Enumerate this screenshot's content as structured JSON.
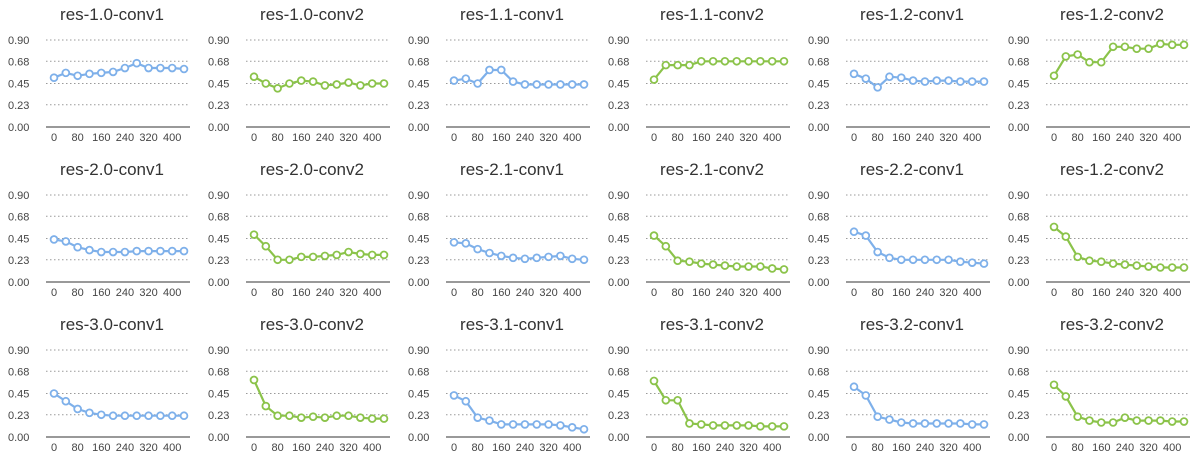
{
  "colors": {
    "blue": "#7eb0ea",
    "green": "#8bc34a"
  },
  "chart_data": [
    {
      "type": "line",
      "title": "res-1.0-conv1",
      "color": "blue",
      "y_ticks": [
        "0.00",
        "0.23",
        "0.45",
        "0.68",
        "0.90"
      ],
      "ylim": [
        0,
        0.9
      ],
      "x_ticks": [
        "0",
        "80",
        "160",
        "240",
        "320",
        "400"
      ],
      "xlim": [
        0,
        440
      ],
      "grid": true,
      "x": [
        0,
        40,
        80,
        120,
        160,
        200,
        240,
        280,
        320,
        360,
        400,
        440
      ],
      "values": [
        0.51,
        0.56,
        0.53,
        0.55,
        0.56,
        0.57,
        0.61,
        0.66,
        0.61,
        0.61,
        0.61,
        0.6
      ]
    },
    {
      "type": "line",
      "title": "res-1.0-conv2",
      "color": "green",
      "y_ticks": [
        "0.00",
        "0.23",
        "0.45",
        "0.68",
        "0.90"
      ],
      "ylim": [
        0,
        0.9
      ],
      "x_ticks": [
        "0",
        "80",
        "160",
        "240",
        "320",
        "400"
      ],
      "xlim": [
        0,
        440
      ],
      "grid": true,
      "x": [
        0,
        40,
        80,
        120,
        160,
        200,
        240,
        280,
        320,
        360,
        400,
        440
      ],
      "values": [
        0.52,
        0.45,
        0.4,
        0.45,
        0.48,
        0.47,
        0.43,
        0.44,
        0.46,
        0.43,
        0.45,
        0.45
      ]
    },
    {
      "type": "line",
      "title": "res-1.1-conv1",
      "color": "blue",
      "y_ticks": [
        "0.00",
        "0.23",
        "0.45",
        "0.68",
        "0.90"
      ],
      "ylim": [
        0,
        0.9
      ],
      "x_ticks": [
        "0",
        "80",
        "160",
        "240",
        "320",
        "400"
      ],
      "xlim": [
        0,
        440
      ],
      "grid": true,
      "x": [
        0,
        40,
        80,
        120,
        160,
        200,
        240,
        280,
        320,
        360,
        400,
        440
      ],
      "values": [
        0.48,
        0.5,
        0.45,
        0.59,
        0.59,
        0.47,
        0.44,
        0.44,
        0.44,
        0.44,
        0.44,
        0.44
      ]
    },
    {
      "type": "line",
      "title": "res-1.1-conv2",
      "color": "green",
      "y_ticks": [
        "0.00",
        "0.23",
        "0.45",
        "0.68",
        "0.90"
      ],
      "ylim": [
        0,
        0.9
      ],
      "x_ticks": [
        "0",
        "80",
        "160",
        "240",
        "320",
        "400"
      ],
      "xlim": [
        0,
        440
      ],
      "grid": true,
      "x": [
        0,
        40,
        80,
        120,
        160,
        200,
        240,
        280,
        320,
        360,
        400,
        440
      ],
      "values": [
        0.49,
        0.64,
        0.64,
        0.64,
        0.68,
        0.68,
        0.68,
        0.68,
        0.68,
        0.68,
        0.68,
        0.68
      ]
    },
    {
      "type": "line",
      "title": "res-1.2-conv1",
      "color": "blue",
      "y_ticks": [
        "0.00",
        "0.23",
        "0.45",
        "0.68",
        "0.90"
      ],
      "ylim": [
        0,
        0.9
      ],
      "x_ticks": [
        "0",
        "80",
        "160",
        "240",
        "320",
        "400"
      ],
      "xlim": [
        0,
        440
      ],
      "grid": true,
      "x": [
        0,
        40,
        80,
        120,
        160,
        200,
        240,
        280,
        320,
        360,
        400,
        440
      ],
      "values": [
        0.55,
        0.5,
        0.41,
        0.52,
        0.51,
        0.48,
        0.47,
        0.48,
        0.48,
        0.47,
        0.47,
        0.47
      ]
    },
    {
      "type": "line",
      "title": "res-1.2-conv2",
      "color": "green",
      "y_ticks": [
        "0.00",
        "0.23",
        "0.45",
        "0.68",
        "0.90"
      ],
      "ylim": [
        0,
        0.9
      ],
      "x_ticks": [
        "0",
        "80",
        "160",
        "240",
        "320",
        "400"
      ],
      "xlim": [
        0,
        440
      ],
      "grid": true,
      "x": [
        0,
        40,
        80,
        120,
        160,
        200,
        240,
        280,
        320,
        360,
        400,
        440
      ],
      "values": [
        0.53,
        0.73,
        0.75,
        0.67,
        0.67,
        0.83,
        0.83,
        0.81,
        0.81,
        0.86,
        0.85,
        0.85
      ]
    },
    {
      "type": "line",
      "title": "res-2.0-conv1",
      "color": "blue",
      "y_ticks": [
        "0.00",
        "0.23",
        "0.45",
        "0.68",
        "0.90"
      ],
      "ylim": [
        0,
        0.9
      ],
      "x_ticks": [
        "0",
        "80",
        "160",
        "240",
        "320",
        "400"
      ],
      "xlim": [
        0,
        440
      ],
      "grid": true,
      "x": [
        0,
        40,
        80,
        120,
        160,
        200,
        240,
        280,
        320,
        360,
        400,
        440
      ],
      "values": [
        0.44,
        0.42,
        0.36,
        0.33,
        0.31,
        0.31,
        0.31,
        0.32,
        0.32,
        0.32,
        0.32,
        0.32
      ]
    },
    {
      "type": "line",
      "title": "res-2.0-conv2",
      "color": "green",
      "y_ticks": [
        "0.00",
        "0.23",
        "0.45",
        "0.68",
        "0.90"
      ],
      "ylim": [
        0,
        0.9
      ],
      "x_ticks": [
        "0",
        "80",
        "160",
        "240",
        "320",
        "400"
      ],
      "xlim": [
        0,
        440
      ],
      "grid": true,
      "x": [
        0,
        40,
        80,
        120,
        160,
        200,
        240,
        280,
        320,
        360,
        400,
        440
      ],
      "values": [
        0.49,
        0.37,
        0.23,
        0.23,
        0.26,
        0.26,
        0.27,
        0.28,
        0.31,
        0.29,
        0.28,
        0.28
      ]
    },
    {
      "type": "line",
      "title": "res-2.1-conv1",
      "color": "blue",
      "y_ticks": [
        "0.00",
        "0.23",
        "0.45",
        "0.68",
        "0.90"
      ],
      "ylim": [
        0,
        0.9
      ],
      "x_ticks": [
        "0",
        "80",
        "160",
        "240",
        "320",
        "400"
      ],
      "xlim": [
        0,
        440
      ],
      "grid": true,
      "x": [
        0,
        40,
        80,
        120,
        160,
        200,
        240,
        280,
        320,
        360,
        400,
        440
      ],
      "values": [
        0.41,
        0.4,
        0.34,
        0.3,
        0.27,
        0.25,
        0.24,
        0.25,
        0.26,
        0.27,
        0.24,
        0.23
      ]
    },
    {
      "type": "line",
      "title": "res-2.1-conv2",
      "color": "green",
      "y_ticks": [
        "0.00",
        "0.23",
        "0.45",
        "0.68",
        "0.90"
      ],
      "ylim": [
        0,
        0.9
      ],
      "x_ticks": [
        "0",
        "80",
        "160",
        "240",
        "320",
        "400"
      ],
      "xlim": [
        0,
        440
      ],
      "grid": true,
      "x": [
        0,
        40,
        80,
        120,
        160,
        200,
        240,
        280,
        320,
        360,
        400,
        440
      ],
      "values": [
        0.48,
        0.37,
        0.22,
        0.21,
        0.19,
        0.18,
        0.17,
        0.16,
        0.16,
        0.16,
        0.14,
        0.13
      ]
    },
    {
      "type": "line",
      "title": "res-2.2-conv1",
      "color": "blue",
      "y_ticks": [
        "0.00",
        "0.23",
        "0.45",
        "0.68",
        "0.90"
      ],
      "ylim": [
        0,
        0.9
      ],
      "x_ticks": [
        "0",
        "80",
        "160",
        "240",
        "320",
        "400"
      ],
      "xlim": [
        0,
        440
      ],
      "grid": true,
      "x": [
        0,
        40,
        80,
        120,
        160,
        200,
        240,
        280,
        320,
        360,
        400,
        440
      ],
      "values": [
        0.52,
        0.48,
        0.31,
        0.25,
        0.23,
        0.23,
        0.23,
        0.23,
        0.23,
        0.21,
        0.2,
        0.19
      ]
    },
    {
      "type": "line",
      "title": "res-1.2-conv2",
      "color": "green",
      "y_ticks": [
        "0.00",
        "0.23",
        "0.45",
        "0.68",
        "0.90"
      ],
      "ylim": [
        0,
        0.9
      ],
      "x_ticks": [
        "0",
        "80",
        "160",
        "240",
        "320",
        "400"
      ],
      "xlim": [
        0,
        440
      ],
      "grid": true,
      "x": [
        0,
        40,
        80,
        120,
        160,
        200,
        240,
        280,
        320,
        360,
        400,
        440
      ],
      "values": [
        0.57,
        0.47,
        0.26,
        0.22,
        0.21,
        0.19,
        0.18,
        0.17,
        0.16,
        0.15,
        0.15,
        0.15
      ]
    },
    {
      "type": "line",
      "title": "res-3.0-conv1",
      "color": "blue",
      "y_ticks": [
        "0.00",
        "0.23",
        "0.45",
        "0.68",
        "0.90"
      ],
      "ylim": [
        0,
        0.9
      ],
      "x_ticks": [
        "0",
        "80",
        "160",
        "240",
        "320",
        "400"
      ],
      "xlim": [
        0,
        440
      ],
      "grid": true,
      "x": [
        0,
        40,
        80,
        120,
        160,
        200,
        240,
        280,
        320,
        360,
        400,
        440
      ],
      "values": [
        0.45,
        0.37,
        0.29,
        0.25,
        0.23,
        0.22,
        0.22,
        0.22,
        0.22,
        0.22,
        0.22,
        0.22
      ]
    },
    {
      "type": "line",
      "title": "res-3.0-conv2",
      "color": "green",
      "y_ticks": [
        "0.00",
        "0.23",
        "0.45",
        "0.68",
        "0.90"
      ],
      "ylim": [
        0,
        0.9
      ],
      "x_ticks": [
        "0",
        "80",
        "160",
        "240",
        "320",
        "400"
      ],
      "xlim": [
        0,
        440
      ],
      "grid": true,
      "x": [
        0,
        40,
        80,
        120,
        160,
        200,
        240,
        280,
        320,
        360,
        400,
        440
      ],
      "values": [
        0.59,
        0.32,
        0.22,
        0.22,
        0.2,
        0.21,
        0.2,
        0.22,
        0.22,
        0.2,
        0.19,
        0.19
      ]
    },
    {
      "type": "line",
      "title": "res-3.1-conv1",
      "color": "blue",
      "y_ticks": [
        "0.00",
        "0.23",
        "0.45",
        "0.68",
        "0.90"
      ],
      "ylim": [
        0,
        0.9
      ],
      "x_ticks": [
        "0",
        "80",
        "160",
        "240",
        "320",
        "400"
      ],
      "xlim": [
        0,
        440
      ],
      "grid": true,
      "x": [
        0,
        40,
        80,
        120,
        160,
        200,
        240,
        280,
        320,
        360,
        400,
        440
      ],
      "values": [
        0.43,
        0.37,
        0.2,
        0.17,
        0.13,
        0.13,
        0.13,
        0.13,
        0.13,
        0.12,
        0.1,
        0.08
      ]
    },
    {
      "type": "line",
      "title": "res-3.1-conv2",
      "color": "green",
      "y_ticks": [
        "0.00",
        "0.23",
        "0.45",
        "0.68",
        "0.90"
      ],
      "ylim": [
        0,
        0.9
      ],
      "x_ticks": [
        "0",
        "80",
        "160",
        "240",
        "320",
        "400"
      ],
      "xlim": [
        0,
        440
      ],
      "grid": true,
      "x": [
        0,
        40,
        80,
        120,
        160,
        200,
        240,
        280,
        320,
        360,
        400,
        440
      ],
      "values": [
        0.58,
        0.38,
        0.38,
        0.14,
        0.13,
        0.12,
        0.12,
        0.12,
        0.12,
        0.11,
        0.11,
        0.11
      ]
    },
    {
      "type": "line",
      "title": "res-3.2-conv1",
      "color": "blue",
      "y_ticks": [
        "0.00",
        "0.23",
        "0.45",
        "0.68",
        "0.90"
      ],
      "ylim": [
        0,
        0.9
      ],
      "x_ticks": [
        "0",
        "80",
        "160",
        "240",
        "320",
        "400"
      ],
      "xlim": [
        0,
        440
      ],
      "grid": true,
      "x": [
        0,
        40,
        80,
        120,
        160,
        200,
        240,
        280,
        320,
        360,
        400,
        440
      ],
      "values": [
        0.52,
        0.43,
        0.21,
        0.18,
        0.15,
        0.14,
        0.14,
        0.14,
        0.14,
        0.14,
        0.13,
        0.13
      ]
    },
    {
      "type": "line",
      "title": "res-3.2-conv2",
      "color": "green",
      "y_ticks": [
        "0.00",
        "0.23",
        "0.45",
        "0.68",
        "0.90"
      ],
      "ylim": [
        0,
        0.9
      ],
      "x_ticks": [
        "0",
        "80",
        "160",
        "240",
        "320",
        "400"
      ],
      "xlim": [
        0,
        440
      ],
      "grid": true,
      "x": [
        0,
        40,
        80,
        120,
        160,
        200,
        240,
        280,
        320,
        360,
        400,
        440
      ],
      "values": [
        0.54,
        0.42,
        0.21,
        0.17,
        0.15,
        0.15,
        0.2,
        0.17,
        0.17,
        0.17,
        0.16,
        0.16
      ]
    }
  ]
}
